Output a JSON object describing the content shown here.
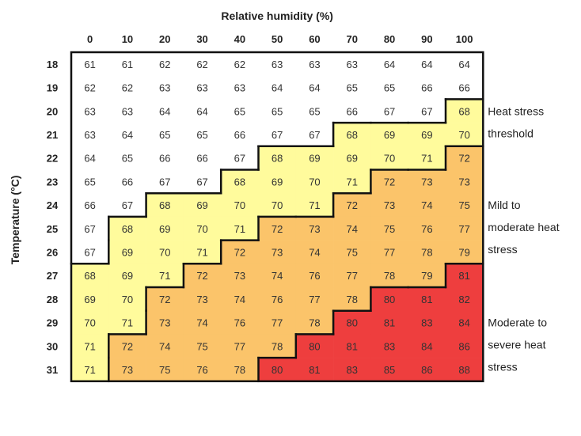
{
  "chart_data": {
    "type": "heatmap",
    "xlabel": "Relative humidity (%)",
    "ylabel": "Temperature (°C)",
    "x": [
      0,
      10,
      20,
      30,
      40,
      50,
      60,
      70,
      80,
      90,
      100
    ],
    "y": [
      18,
      19,
      20,
      21,
      22,
      23,
      24,
      25,
      26,
      27,
      28,
      29,
      30,
      31
    ],
    "values": [
      [
        61,
        61,
        62,
        62,
        62,
        63,
        63,
        63,
        64,
        64,
        64
      ],
      [
        62,
        62,
        63,
        63,
        63,
        64,
        64,
        65,
        65,
        66,
        66
      ],
      [
        63,
        63,
        64,
        64,
        65,
        65,
        65,
        66,
        67,
        67,
        68
      ],
      [
        63,
        64,
        65,
        65,
        66,
        67,
        67,
        68,
        69,
        69,
        70
      ],
      [
        64,
        65,
        66,
        66,
        67,
        68,
        69,
        69,
        70,
        71,
        72
      ],
      [
        65,
        66,
        67,
        67,
        68,
        69,
        70,
        71,
        72,
        73,
        73
      ],
      [
        66,
        67,
        68,
        69,
        70,
        70,
        71,
        72,
        73,
        74,
        75
      ],
      [
        67,
        68,
        69,
        70,
        71,
        72,
        73,
        74,
        75,
        76,
        77
      ],
      [
        67,
        69,
        70,
        71,
        72,
        73,
        74,
        75,
        77,
        78,
        79
      ],
      [
        68,
        69,
        71,
        72,
        73,
        74,
        76,
        77,
        78,
        79,
        81
      ],
      [
        69,
        70,
        72,
        73,
        74,
        76,
        77,
        78,
        80,
        81,
        82
      ],
      [
        70,
        71,
        73,
        74,
        76,
        77,
        78,
        80,
        81,
        83,
        84
      ],
      [
        71,
        72,
        74,
        75,
        77,
        78,
        80,
        81,
        83,
        84,
        86
      ],
      [
        71,
        73,
        75,
        76,
        78,
        80,
        81,
        83,
        85,
        86,
        88
      ]
    ],
    "zones": [
      {
        "label": [
          "Heat stress",
          "threshold"
        ],
        "min": 68,
        "color": "#fffb9c"
      },
      {
        "label": [
          "Mild to",
          "moderate heat",
          "stress"
        ],
        "min": 72,
        "color": "#fbc46a"
      },
      {
        "label": [
          "Moderate to",
          "severe heat",
          "stress"
        ],
        "min": 80,
        "color": "#ee3e3e"
      }
    ],
    "none_color": "#ffffff"
  }
}
